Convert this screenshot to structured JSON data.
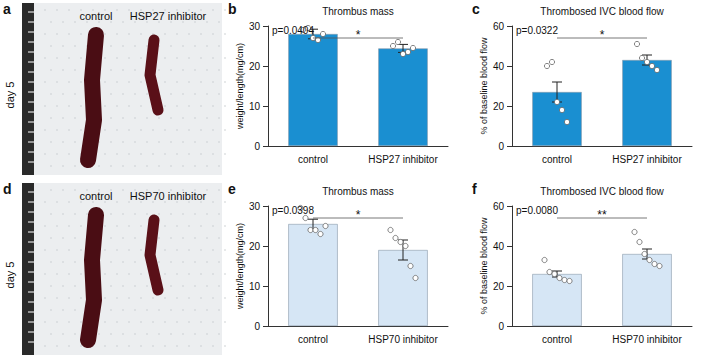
{
  "photos": [
    {
      "panel_label": "a",
      "side_label": "day 5",
      "labels": [
        "control",
        "HSP27 inhibitor"
      ]
    },
    {
      "panel_label": "d",
      "side_label": "day 5",
      "labels": [
        "control",
        "HSP70 inhibitor"
      ]
    }
  ],
  "chart_data": [
    {
      "type": "bar",
      "panel_label": "b",
      "title": "Thrombus mass",
      "y_label": "weight/length(mg/cm)",
      "categories": [
        "control",
        "HSP27 inhibitor"
      ],
      "values": [
        28,
        24.4
      ],
      "errors": [
        1.2,
        1.0
      ],
      "points": [
        [
          29,
          29.5,
          27,
          26.5,
          28
        ],
        [
          25,
          26,
          23,
          23.5,
          24.5
        ]
      ],
      "color": "#1a8fd1",
      "ylim": [
        0,
        30
      ],
      "yticks": [
        0,
        10,
        20,
        30
      ],
      "annotations": [
        "p=0.0404",
        "*"
      ]
    },
    {
      "type": "bar",
      "panel_label": "c",
      "title": "Thrombosed IVC blood flow",
      "y_label": "% of baseline blood flow",
      "categories": [
        "control",
        "HSP27 inhibitor"
      ],
      "values": [
        27,
        43
      ],
      "errors": [
        5,
        2.5
      ],
      "points": [
        [
          40,
          42,
          22,
          18,
          12
        ],
        [
          51,
          44,
          42,
          40,
          38
        ]
      ],
      "color": "#1a8fd1",
      "ylim": [
        0,
        60
      ],
      "yticks": [
        0,
        20,
        40,
        60
      ],
      "annotations": [
        "p=0.0322",
        "*"
      ]
    },
    {
      "type": "bar",
      "panel_label": "e",
      "title": "Thrombus mass",
      "y_label": "weight/length(mg/cm)",
      "categories": [
        "control",
        "HSP70 inhibitor"
      ],
      "values": [
        25.5,
        19
      ],
      "errors": [
        1.2,
        2.5
      ],
      "points": [
        [
          29.5,
          27,
          24,
          24,
          23,
          25
        ],
        [
          24,
          22,
          21,
          20,
          15,
          12
        ]
      ],
      "color": "#d6e6f5",
      "ylim": [
        0,
        30
      ],
      "yticks": [
        0,
        10,
        20,
        30
      ],
      "annotations": [
        "p=0.0398",
        "*"
      ]
    },
    {
      "type": "bar",
      "panel_label": "f",
      "title": "Thrombosed IVC blood flow",
      "y_label": "% of baseline blood flow",
      "categories": [
        "control",
        "HSP70 inhibitor"
      ],
      "values": [
        26,
        36
      ],
      "errors": [
        1.5,
        2.5
      ],
      "points": [
        [
          33,
          27,
          26,
          24,
          23,
          22.5
        ],
        [
          47,
          42,
          36,
          33,
          31,
          30
        ]
      ],
      "color": "#d6e6f5",
      "ylim": [
        0,
        60
      ],
      "yticks": [
        0,
        20,
        40,
        60
      ],
      "annotations": [
        "p=0.0080",
        "**"
      ]
    }
  ]
}
